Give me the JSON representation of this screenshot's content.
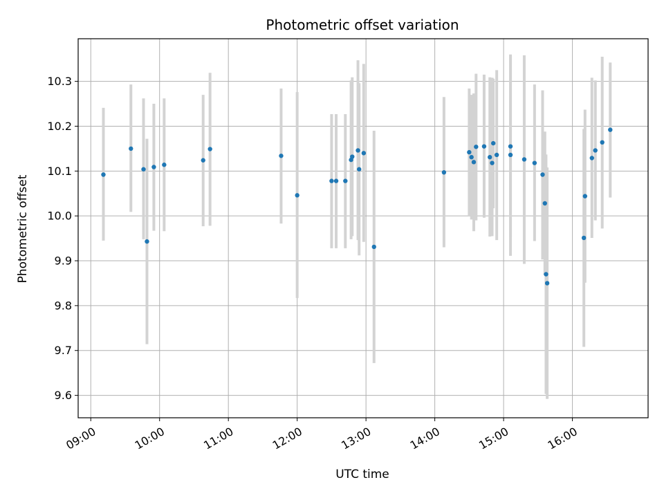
{
  "chart_data": {
    "type": "scatter",
    "title": "Photometric offset variation",
    "xlabel": "UTC time",
    "ylabel": "Photometric offset",
    "xlim": [
      "08:49",
      "17:06"
    ],
    "ylim": [
      9.55,
      10.395
    ],
    "grid": true,
    "x_tick_labels": [
      "09:00",
      "10:00",
      "11:00",
      "12:00",
      "13:00",
      "14:00",
      "15:00",
      "16:00"
    ],
    "y_tick_labels": [
      "9.6",
      "9.7",
      "9.8",
      "9.9",
      "10.0",
      "10.1",
      "10.2",
      "10.3"
    ],
    "marker_color": "#1f77b4",
    "errorbar_color": "#d3d3d3",
    "points": [
      {
        "t": "09:11",
        "y": 10.092,
        "lo": 9.945,
        "hi": 10.241
      },
      {
        "t": "09:35",
        "y": 10.15,
        "lo": 10.009,
        "hi": 10.293
      },
      {
        "t": "09:46",
        "y": 10.104,
        "lo": 9.948,
        "hi": 10.262
      },
      {
        "t": "09:49",
        "y": 9.943,
        "lo": 9.714,
        "hi": 10.172
      },
      {
        "t": "09:55",
        "y": 10.109,
        "lo": 9.967,
        "hi": 10.25
      },
      {
        "t": "10:04",
        "y": 10.114,
        "lo": 9.966,
        "hi": 10.262
      },
      {
        "t": "10:38",
        "y": 10.124,
        "lo": 9.977,
        "hi": 10.27
      },
      {
        "t": "10:44",
        "y": 10.149,
        "lo": 9.978,
        "hi": 10.319
      },
      {
        "t": "11:46",
        "y": 10.134,
        "lo": 9.983,
        "hi": 10.284
      },
      {
        "t": "12:00",
        "y": 10.046,
        "lo": 9.817,
        "hi": 10.276
      },
      {
        "t": "12:30",
        "y": 10.078,
        "lo": 9.928,
        "hi": 10.227
      },
      {
        "t": "12:34",
        "y": 10.078,
        "lo": 9.928,
        "hi": 10.227
      },
      {
        "t": "12:42",
        "y": 10.078,
        "lo": 9.928,
        "hi": 10.227
      },
      {
        "t": "12:47",
        "y": 10.125,
        "lo": 9.948,
        "hi": 10.302
      },
      {
        "t": "12:48",
        "y": 10.132,
        "lo": 9.955,
        "hi": 10.309
      },
      {
        "t": "12:53",
        "y": 10.146,
        "lo": 9.946,
        "hi": 10.347
      },
      {
        "t": "12:54",
        "y": 10.104,
        "lo": 9.912,
        "hi": 10.296
      },
      {
        "t": "12:58",
        "y": 10.14,
        "lo": 9.942,
        "hi": 10.339
      },
      {
        "t": "13:07",
        "y": 9.931,
        "lo": 9.672,
        "hi": 10.19
      },
      {
        "t": "14:08",
        "y": 10.097,
        "lo": 9.93,
        "hi": 10.265
      },
      {
        "t": "14:30",
        "y": 10.142,
        "lo": 10.0,
        "hi": 10.284
      },
      {
        "t": "14:32",
        "y": 10.131,
        "lo": 9.992,
        "hi": 10.27
      },
      {
        "t": "14:34",
        "y": 10.12,
        "lo": 9.966,
        "hi": 10.273
      },
      {
        "t": "14:36",
        "y": 10.154,
        "lo": 9.99,
        "hi": 10.317
      },
      {
        "t": "14:43",
        "y": 10.155,
        "lo": 9.996,
        "hi": 10.315
      },
      {
        "t": "14:48",
        "y": 10.131,
        "lo": 9.954,
        "hi": 10.309
      },
      {
        "t": "14:50",
        "y": 10.118,
        "lo": 9.955,
        "hi": 10.308
      },
      {
        "t": "14:51",
        "y": 10.162,
        "lo": 10.017,
        "hi": 10.306
      },
      {
        "t": "14:54",
        "y": 10.136,
        "lo": 9.946,
        "hi": 10.325
      },
      {
        "t": "15:06",
        "y": 10.155,
        "lo": 9.953,
        "hi": 10.357
      },
      {
        "t": "15:06",
        "y": 10.136,
        "lo": 9.911,
        "hi": 10.36
      },
      {
        "t": "15:18",
        "y": 10.126,
        "lo": 9.893,
        "hi": 10.358
      },
      {
        "t": "15:27",
        "y": 10.118,
        "lo": 9.944,
        "hi": 10.293
      },
      {
        "t": "15:34",
        "y": 10.092,
        "lo": 9.903,
        "hi": 10.28
      },
      {
        "t": "15:36",
        "y": 10.028,
        "lo": 9.868,
        "hi": 10.188
      },
      {
        "t": "15:37",
        "y": 9.87,
        "lo": 9.603,
        "hi": 10.137
      },
      {
        "t": "15:38",
        "y": 9.85,
        "lo": 9.592,
        "hi": 10.108
      },
      {
        "t": "16:10",
        "y": 9.951,
        "lo": 9.708,
        "hi": 10.194
      },
      {
        "t": "16:11",
        "y": 10.044,
        "lo": 9.851,
        "hi": 10.237
      },
      {
        "t": "16:17",
        "y": 10.129,
        "lo": 9.951,
        "hi": 10.308
      },
      {
        "t": "16:20",
        "y": 10.146,
        "lo": 9.99,
        "hi": 10.302
      },
      {
        "t": "16:26",
        "y": 10.164,
        "lo": 9.972,
        "hi": 10.355
      },
      {
        "t": "16:33",
        "y": 10.192,
        "lo": 10.041,
        "hi": 10.342
      }
    ]
  }
}
